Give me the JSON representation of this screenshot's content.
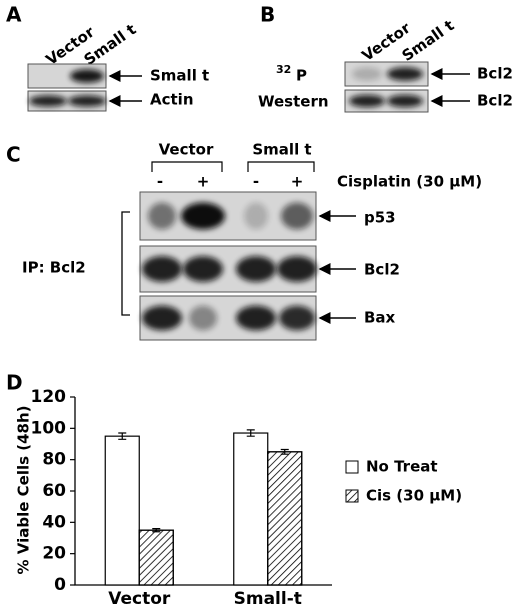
{
  "panels": {
    "a": {
      "label": "A",
      "lanes": [
        "Vector",
        "Small t"
      ],
      "rows": [
        "Small t",
        "Actin"
      ]
    },
    "b": {
      "label": "B",
      "lanes": [
        "Vector",
        "Small t"
      ],
      "rows": [
        {
          "left": "P",
          "left_sup": "32",
          "right": "Bcl2"
        },
        {
          "left": "Western",
          "right": "Bcl2"
        }
      ]
    },
    "c": {
      "label": "C",
      "groups": [
        "Vector",
        "Small t"
      ],
      "treatments": [
        "-",
        "+",
        "-",
        "+"
      ],
      "treatment_label": "Cisplatin (30 μM)",
      "ip_label": "IP: Bcl2",
      "rows": [
        "p53",
        "Bcl2",
        "Bax"
      ]
    }
  },
  "chart_data": {
    "type": "bar",
    "panel_label": "D",
    "y_label": "% Viable Cells (48h)",
    "categories": [
      "Vector",
      "Small-t"
    ],
    "series": [
      {
        "name": "No Treat",
        "color": "#ffffff",
        "values": [
          95,
          97
        ],
        "errors": [
          2,
          2
        ]
      },
      {
        "name": "Cis (30 μM)",
        "color": "#ffffff",
        "hatch": true,
        "values": [
          35,
          85
        ],
        "errors": [
          1,
          1.5
        ]
      }
    ],
    "ylim": [
      0,
      120
    ],
    "yticks": [
      0,
      20,
      40,
      60,
      80,
      100,
      120
    ],
    "legend": "right"
  }
}
